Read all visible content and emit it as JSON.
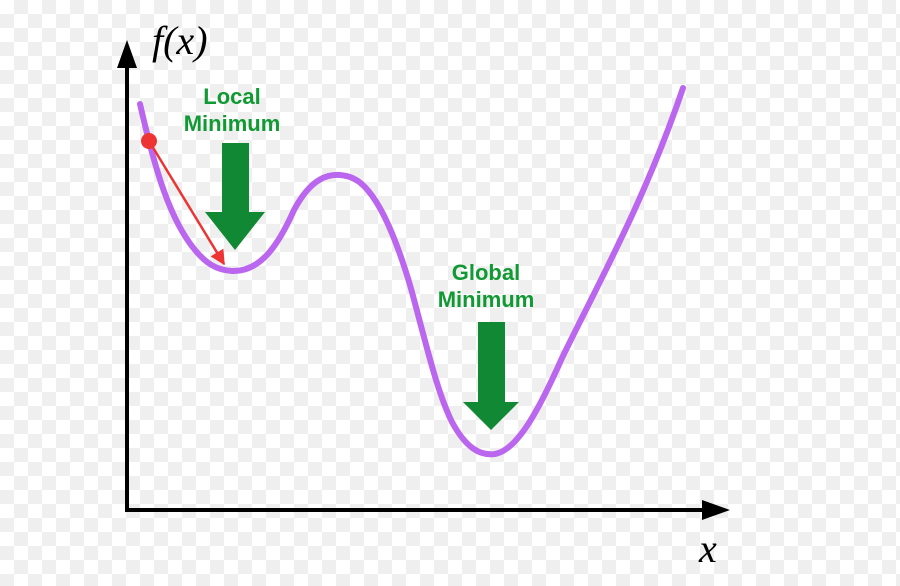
{
  "axes": {
    "y_label": "f(x)",
    "x_label": "x"
  },
  "annotations": {
    "local": {
      "line1": "Local",
      "line2": "Minimum"
    },
    "global": {
      "line1": "Global",
      "line2": "Minimum"
    }
  },
  "colors": {
    "axis": "#000000",
    "curve": "#bb66ee",
    "start_point": "#ee3333",
    "step_arrow": "#ee3333",
    "annotation_arrow": "#118833",
    "annotation_text": "#119933"
  },
  "icons": {
    "start_point": "red-dot",
    "descent_step": "red-arrow",
    "minimum_pointer": "green-down-arrow"
  }
}
